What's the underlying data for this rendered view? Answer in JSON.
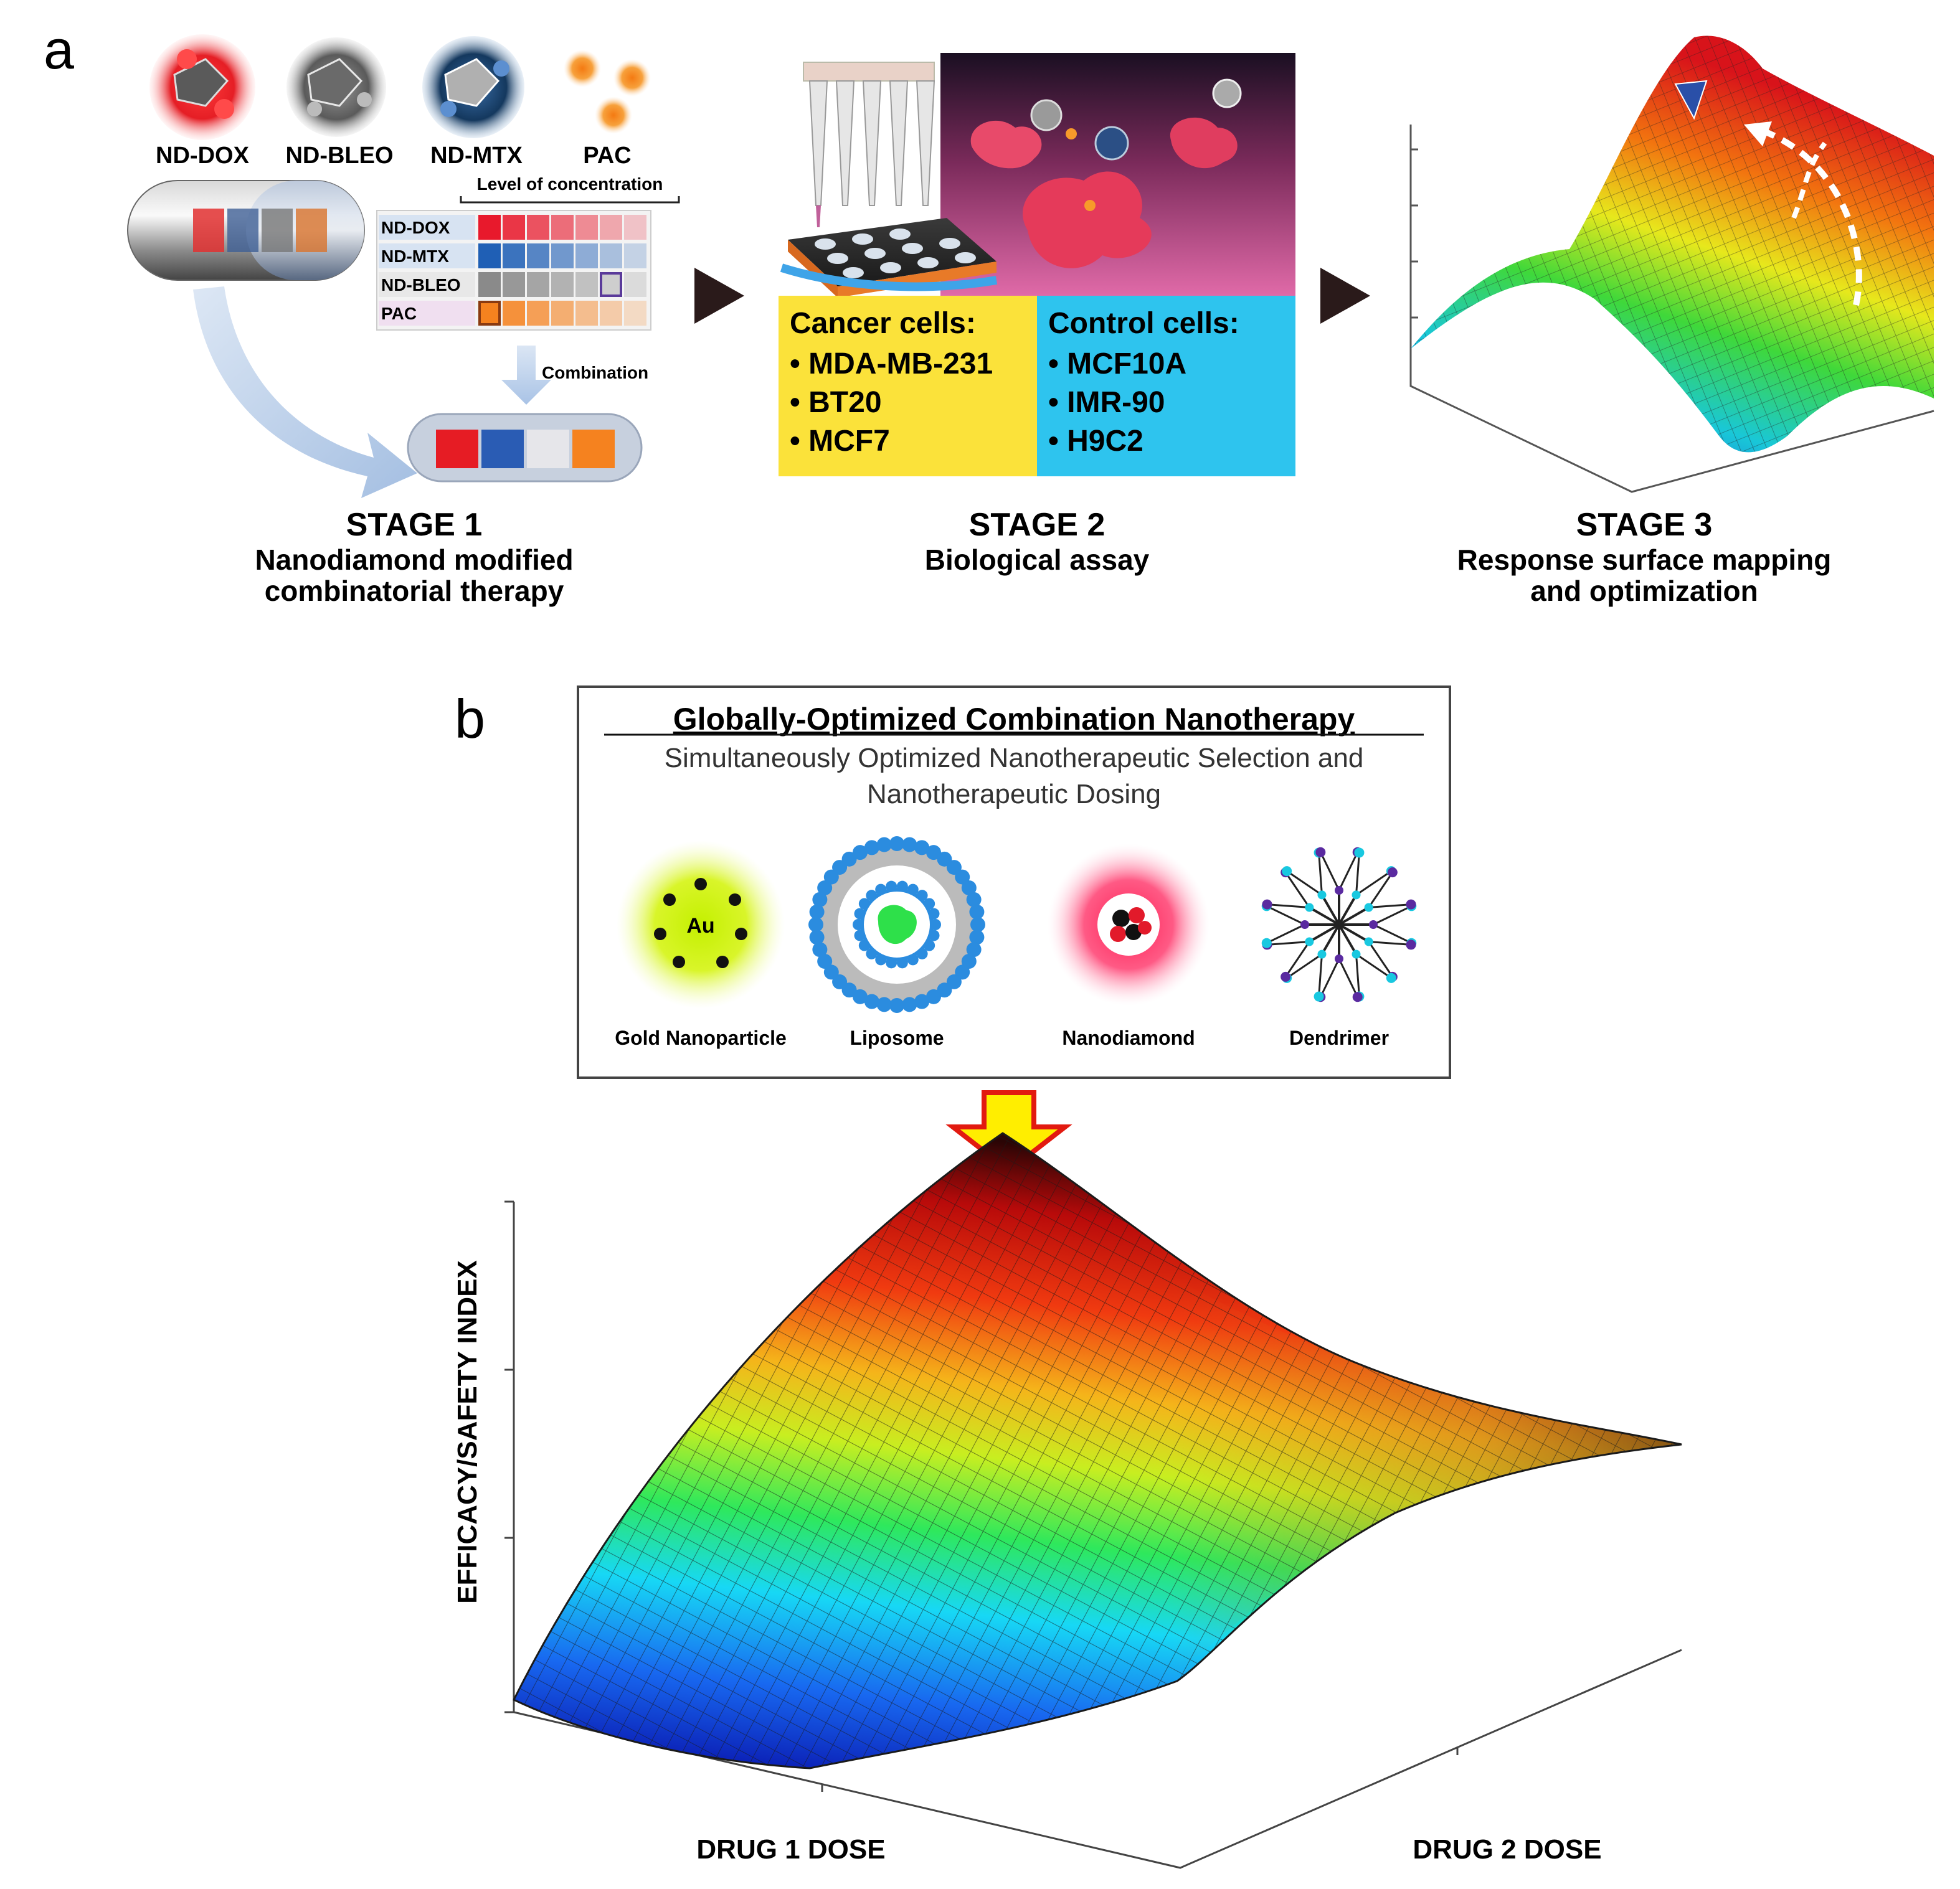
{
  "panel_a": {
    "letter": "a",
    "stage1": {
      "drugs": [
        "ND-DOX",
        "ND-BLEO",
        "ND-MTX",
        "PAC"
      ],
      "concentration_label": "Level of concentration",
      "matrix_rows": [
        "ND-DOX",
        "ND-MTX",
        "ND-BLEO",
        "PAC"
      ],
      "combination_label": "Combination",
      "title": "STAGE 1",
      "subtitle_1": "Nanodiamond modified",
      "subtitle_2": "combinatorial therapy"
    },
    "stage2": {
      "cancer_title": "Cancer cells:",
      "cancer_cells": [
        "• MDA-MB-231",
        "• BT20",
        "• MCF7"
      ],
      "control_title": "Control cells:",
      "control_cells": [
        "• MCF10A",
        "• IMR-90",
        "• H9C2"
      ],
      "title": "STAGE 2",
      "subtitle_1": "Biological assay"
    },
    "stage3": {
      "title": "STAGE 3",
      "subtitle_1": "Response surface mapping",
      "subtitle_2": "and optimization"
    }
  },
  "panel_b": {
    "letter": "b",
    "box_title": "Globally-Optimized Combination Nanotherapy",
    "box_subtitle_1": "Simultaneously Optimized Nanotherapeutic Selection and",
    "box_subtitle_2": "Nanotherapeutic Dosing",
    "gold_symbol": "Au",
    "nanoparticles": [
      "Gold Nanoparticle",
      "Liposome",
      "Nanodiamond",
      "Dendrimer"
    ],
    "y_axis_label": "EFFICACY/SAFETY INDEX",
    "x1_axis_label": "DRUG 1 DOSE",
    "x2_axis_label": "DRUG 2 DOSE"
  },
  "colors": {
    "dox": "#e8192c",
    "mtx": "#1f5fb5",
    "bleo": "#8a8a8a",
    "pac": "#f5821f",
    "cancer_box": "#fbe23a",
    "control_box": "#2ec4ee",
    "arrow": "#2a1a1a"
  }
}
